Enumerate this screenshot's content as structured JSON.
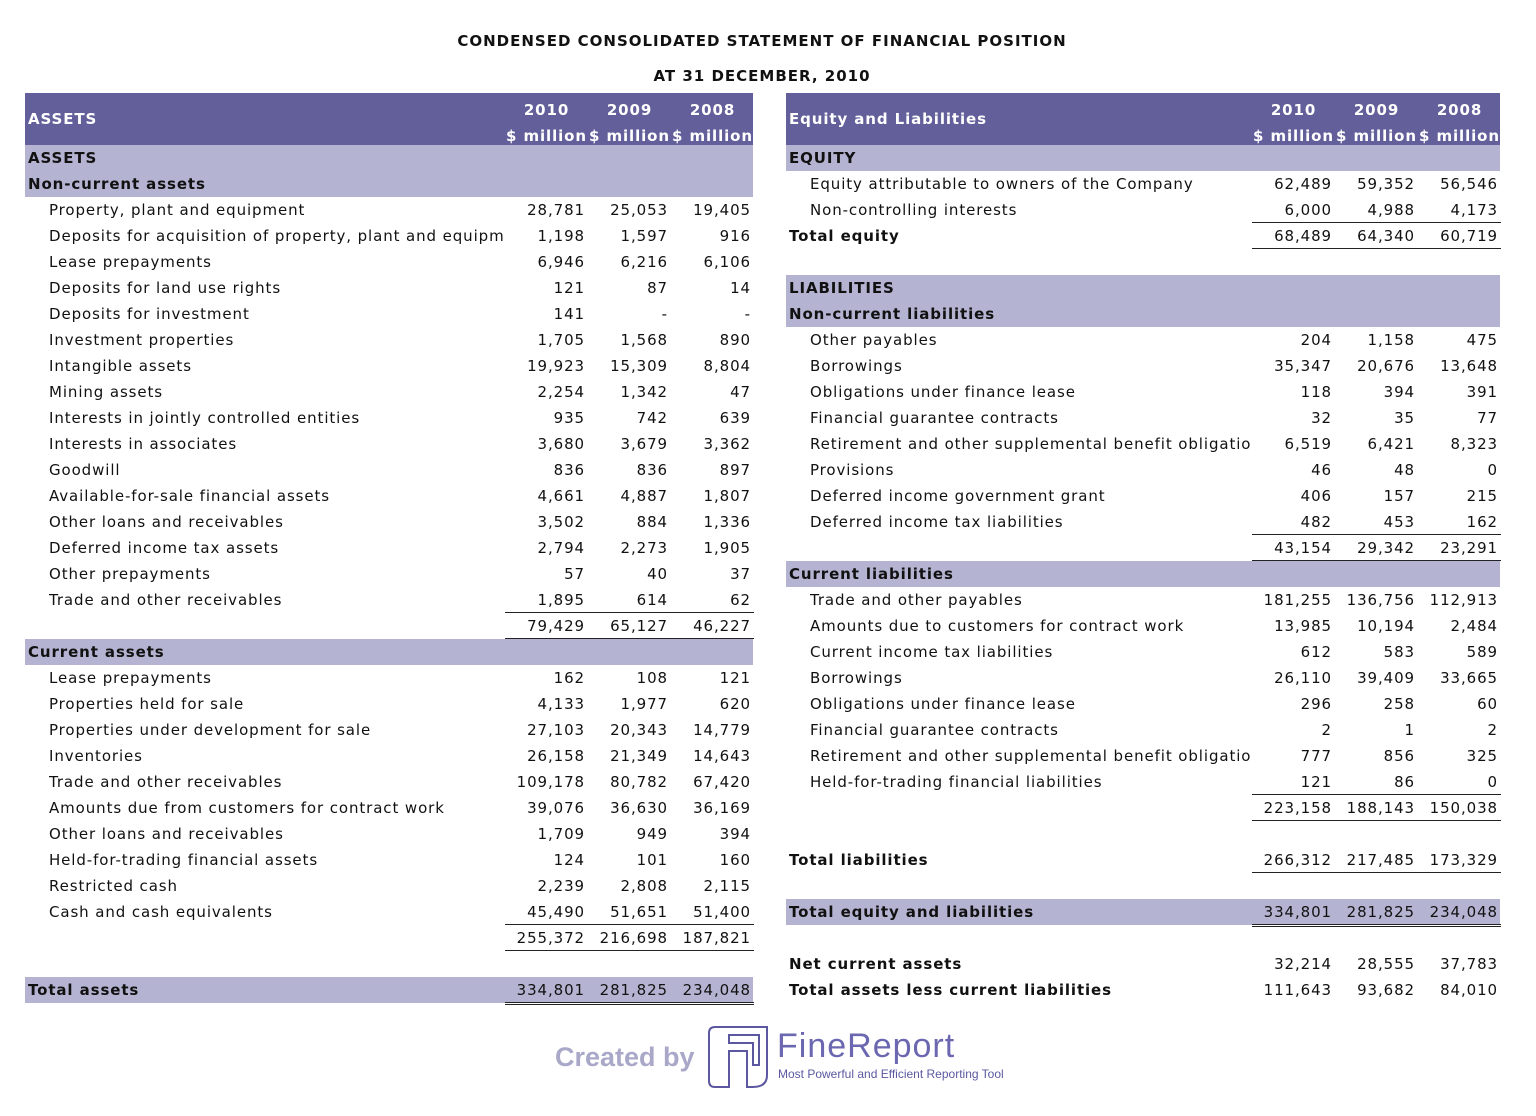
{
  "title": "CONDENSED CONSOLIDATED STATEMENT OF FINANCIAL POSITION",
  "subtitle": "AT 31 DECEMBER, 2010",
  "colors": {
    "header": "#625f9a",
    "section": "#b4b4d2"
  },
  "left": {
    "header": {
      "label": "ASSETS",
      "years": [
        "2010",
        "2009",
        "2008"
      ],
      "unit": "$ million"
    },
    "rows": [
      {
        "type": "section",
        "label": "ASSETS"
      },
      {
        "type": "section",
        "label": "Non-current assets"
      },
      {
        "type": "item",
        "label": "Property, plant and equipment",
        "values": [
          "28,781",
          "25,053",
          "19,405"
        ]
      },
      {
        "type": "item",
        "label": "Deposits for acquisition of property, plant and equipment",
        "values": [
          "1,198",
          "1,597",
          "916"
        ]
      },
      {
        "type": "item",
        "label": "Lease prepayments",
        "values": [
          "6,946",
          "6,216",
          "6,106"
        ]
      },
      {
        "type": "item",
        "label": "Deposits for land use rights",
        "values": [
          "121",
          "87",
          "14"
        ]
      },
      {
        "type": "item",
        "label": "Deposits for investment",
        "values": [
          "141",
          "-",
          "-"
        ]
      },
      {
        "type": "item",
        "label": "Investment properties",
        "values": [
          "1,705",
          "1,568",
          "890"
        ]
      },
      {
        "type": "item",
        "label": "Intangible assets",
        "values": [
          "19,923",
          "15,309",
          "8,804"
        ]
      },
      {
        "type": "item",
        "label": "Mining assets",
        "values": [
          "2,254",
          "1,342",
          "47"
        ]
      },
      {
        "type": "item",
        "label": "Interests in jointly controlled entities",
        "values": [
          "935",
          "742",
          "639"
        ]
      },
      {
        "type": "item",
        "label": "Interests in associates",
        "values": [
          "3,680",
          "3,679",
          "3,362"
        ]
      },
      {
        "type": "item",
        "label": "Goodwill",
        "values": [
          "836",
          "836",
          "897"
        ]
      },
      {
        "type": "item",
        "label": "Available-for-sale financial assets",
        "values": [
          "4,661",
          "4,887",
          "1,807"
        ]
      },
      {
        "type": "item",
        "label": "Other loans and receivables",
        "values": [
          "3,502",
          "884",
          "1,336"
        ]
      },
      {
        "type": "item",
        "label": "Deferred income tax assets",
        "values": [
          "2,794",
          "2,273",
          "1,905"
        ]
      },
      {
        "type": "item",
        "label": "Other prepayments",
        "values": [
          "57",
          "40",
          "37"
        ]
      },
      {
        "type": "item",
        "label": "Trade and other receivables",
        "values": [
          "1,895",
          "614",
          "62"
        ]
      },
      {
        "type": "subtotal",
        "label": "",
        "values": [
          "79,429",
          "65,127",
          "46,227"
        ]
      },
      {
        "type": "section",
        "label": "Current assets"
      },
      {
        "type": "item",
        "label": "Lease prepayments",
        "values": [
          "162",
          "108",
          "121"
        ]
      },
      {
        "type": "item",
        "label": "Properties held for sale",
        "values": [
          "4,133",
          "1,977",
          "620"
        ]
      },
      {
        "type": "item",
        "label": "Properties under development for sale",
        "values": [
          "27,103",
          "20,343",
          "14,779"
        ]
      },
      {
        "type": "item",
        "label": "Inventories",
        "values": [
          "26,158",
          "21,349",
          "14,643"
        ]
      },
      {
        "type": "item",
        "label": "Trade and other receivables",
        "values": [
          "109,178",
          "80,782",
          "67,420"
        ]
      },
      {
        "type": "item",
        "label": "Amounts due from customers for contract work",
        "values": [
          "39,076",
          "36,630",
          "36,169"
        ]
      },
      {
        "type": "item",
        "label": "Other loans and receivables",
        "values": [
          "1,709",
          "949",
          "394"
        ]
      },
      {
        "type": "item",
        "label": "Held-for-trading financial assets",
        "values": [
          "124",
          "101",
          "160"
        ]
      },
      {
        "type": "item",
        "label": "Restricted cash",
        "values": [
          "2,239",
          "2,808",
          "2,115"
        ]
      },
      {
        "type": "item",
        "label": "Cash and cash equivalents",
        "values": [
          "45,490",
          "51,651",
          "51,400"
        ]
      },
      {
        "type": "subtotal",
        "label": "",
        "values": [
          "255,372",
          "216,698",
          "187,821"
        ]
      },
      {
        "type": "blank"
      },
      {
        "type": "grand",
        "label": "Total assets",
        "values": [
          "334,801",
          "281,825",
          "234,048"
        ]
      }
    ]
  },
  "right": {
    "header": {
      "label": "Equity and Liabilities",
      "years": [
        "2010",
        "2009",
        "2008"
      ],
      "unit": "$ million"
    },
    "rows": [
      {
        "type": "section",
        "label": "EQUITY"
      },
      {
        "type": "item",
        "label": "Equity attributable to owners of the Company",
        "values": [
          "62,489",
          "59,352",
          "56,546"
        ]
      },
      {
        "type": "item",
        "label": "Non-controlling interests",
        "values": [
          "6,000",
          "4,988",
          "4,173"
        ]
      },
      {
        "type": "boldtotal",
        "label": "Total equity",
        "values": [
          "68,489",
          "64,340",
          "60,719"
        ]
      },
      {
        "type": "blank"
      },
      {
        "type": "section",
        "label": "LIABILITIES"
      },
      {
        "type": "section",
        "label": "Non-current liabilities"
      },
      {
        "type": "item",
        "label": "Other payables",
        "values": [
          "204",
          "1,158",
          "475"
        ]
      },
      {
        "type": "item",
        "label": "Borrowings",
        "values": [
          "35,347",
          "20,676",
          "13,648"
        ]
      },
      {
        "type": "item",
        "label": "Obligations under finance lease",
        "values": [
          "118",
          "394",
          "391"
        ]
      },
      {
        "type": "item",
        "label": "Financial guarantee contracts",
        "values": [
          "32",
          "35",
          "77"
        ]
      },
      {
        "type": "item",
        "label": "Retirement and other supplemental benefit obligations",
        "values": [
          "6,519",
          "6,421",
          "8,323"
        ]
      },
      {
        "type": "item",
        "label": "Provisions",
        "values": [
          "46",
          "48",
          "0"
        ]
      },
      {
        "type": "item",
        "label": "Deferred income government grant",
        "values": [
          "406",
          "157",
          "215"
        ]
      },
      {
        "type": "item",
        "label": "Deferred income tax liabilities",
        "values": [
          "482",
          "453",
          "162"
        ]
      },
      {
        "type": "subtotal",
        "label": "",
        "values": [
          "43,154",
          "29,342",
          "23,291"
        ]
      },
      {
        "type": "section",
        "label": "Current liabilities"
      },
      {
        "type": "item",
        "label": "Trade and other payables",
        "values": [
          "181,255",
          "136,756",
          "112,913"
        ]
      },
      {
        "type": "item",
        "label": "Amounts due to customers for contract work",
        "values": [
          "13,985",
          "10,194",
          "2,484"
        ]
      },
      {
        "type": "item",
        "label": "Current income tax liabilities",
        "values": [
          "612",
          "583",
          "589"
        ]
      },
      {
        "type": "item",
        "label": "Borrowings",
        "values": [
          "26,110",
          "39,409",
          "33,665"
        ]
      },
      {
        "type": "item",
        "label": "Obligations under finance lease",
        "values": [
          "296",
          "258",
          "60"
        ]
      },
      {
        "type": "item",
        "label": "Financial guarantee contracts",
        "values": [
          "2",
          "1",
          "2"
        ]
      },
      {
        "type": "item",
        "label": "Retirement and other supplemental benefit obligations",
        "values": [
          "777",
          "856",
          "325"
        ]
      },
      {
        "type": "item",
        "label": "Held-for-trading financial liabilities",
        "values": [
          "121",
          "86",
          "0"
        ]
      },
      {
        "type": "subtotal",
        "label": "",
        "values": [
          "223,158",
          "188,143",
          "150,038"
        ]
      },
      {
        "type": "blank"
      },
      {
        "type": "boldline",
        "label": "Total liabilities",
        "values": [
          "266,312",
          "217,485",
          "173,329"
        ]
      },
      {
        "type": "blank"
      },
      {
        "type": "grand",
        "label": "Total equity and liabilities",
        "values": [
          "334,801",
          "281,825",
          "234,048"
        ]
      },
      {
        "type": "blank"
      },
      {
        "type": "boldplain",
        "label": "Net current assets",
        "values": [
          "32,214",
          "28,555",
          "37,783"
        ]
      },
      {
        "type": "boldplain",
        "label": "Total assets less current liabilities",
        "values": [
          "111,643",
          "93,682",
          "84,010"
        ]
      }
    ]
  },
  "footer": {
    "created_by": "Created by",
    "brand": "FineReport",
    "tagline": "Most Powerful and Efficient Reporting Tool"
  }
}
